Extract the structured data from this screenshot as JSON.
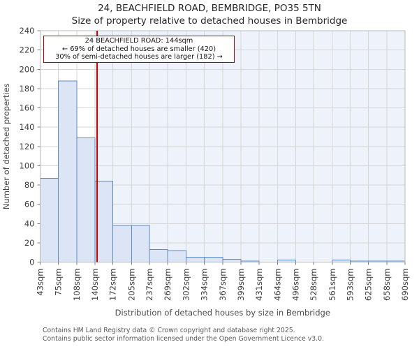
{
  "annotation": {
    "line1": "24 BEACHFIELD ROAD: 144sqm",
    "line2": "← 69% of detached houses are smaller (420)",
    "line3": "30% of semi-detached houses are larger (182) →"
  },
  "chart_data": {
    "type": "bar",
    "title": "24, BEACHFIELD ROAD, BEMBRIDGE, PO35 5TN",
    "subtitle": "Size of property relative to detached houses in Bembridge",
    "xlabel": "Distribution of detached houses by size in Bembridge",
    "ylabel": "Number of detached properties",
    "bin_edges_sqm": [
      43,
      75,
      108,
      140,
      172,
      205,
      237,
      269,
      302,
      334,
      367,
      399,
      431,
      464,
      496,
      528,
      561,
      593,
      625,
      658,
      690
    ],
    "xtick_labels": [
      "43sqm",
      "75sqm",
      "108sqm",
      "140sqm",
      "172sqm",
      "205sqm",
      "237sqm",
      "269sqm",
      "302sqm",
      "334sqm",
      "367sqm",
      "399sqm",
      "431sqm",
      "464sqm",
      "496sqm",
      "528sqm",
      "561sqm",
      "593sqm",
      "625sqm",
      "658sqm",
      "690sqm"
    ],
    "values": [
      87,
      188,
      129,
      84,
      38,
      38,
      13,
      12,
      5,
      5,
      3,
      1,
      0,
      2,
      0,
      0,
      2,
      1,
      1,
      1
    ],
    "ylim": [
      0,
      240
    ],
    "ytick_step": 20,
    "grid": true,
    "legend": null,
    "marker": {
      "value_sqm": 144,
      "shade_side": "right"
    },
    "colors": {
      "bar_fill": "#dbe5f5",
      "bar_stroke": "#5b8bc9",
      "marker_line": "#c00000",
      "shade": "#eef3fb",
      "grid": "#d6d6d6",
      "plot_border": "#b8b8b8",
      "tick": "#808080",
      "tick_text": "#3a3a3a",
      "axis_title": "#4a4a4a"
    }
  },
  "footer": {
    "line1": "Contains HM Land Registry data © Crown copyright and database right 2025.",
    "line2": "Contains public sector information licensed under the Open Government Licence v3.0."
  }
}
